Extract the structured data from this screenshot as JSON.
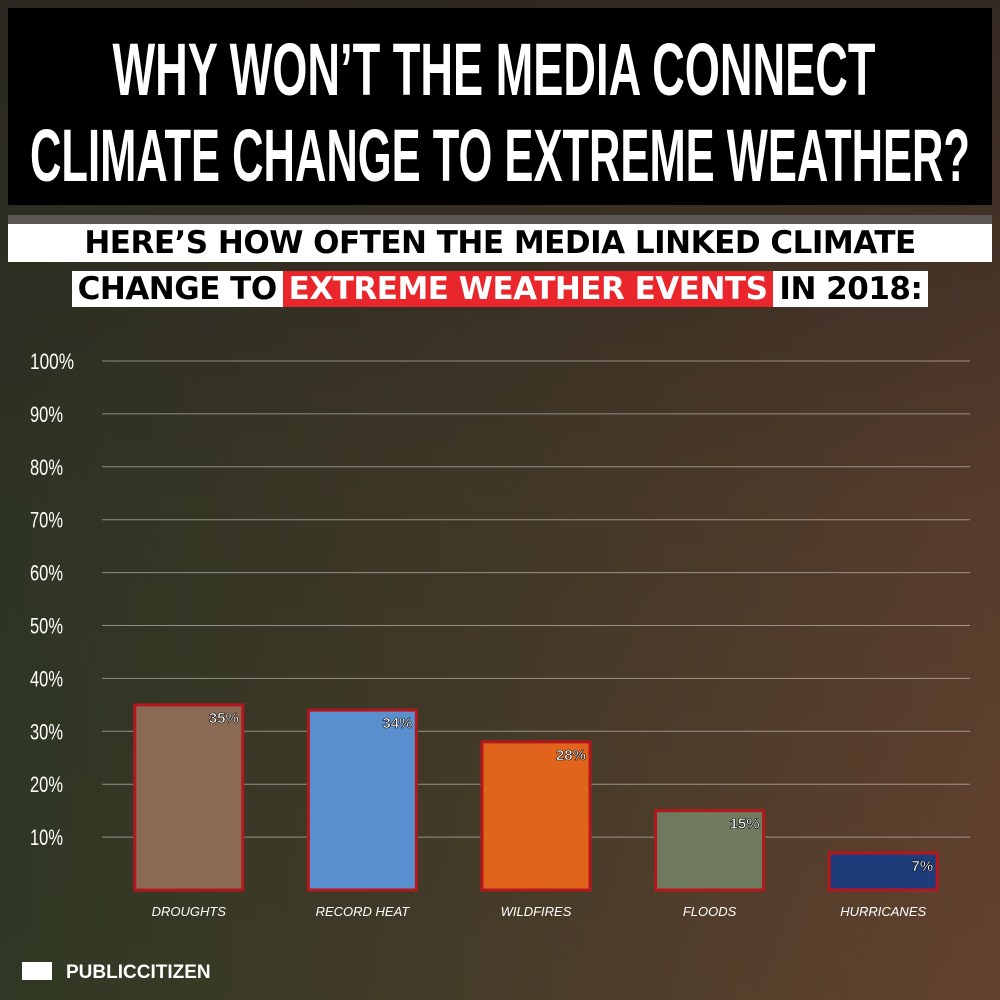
{
  "chart_data": {
    "type": "bar",
    "title": [
      "WHY WON’T THE MEDIA CONNECT",
      "CLIMATE CHANGE TO EXTREME WEATHER?"
    ],
    "subtitle": [
      "HERE’S HOW OFTEN THE MEDIA LINKED CLIMATE",
      "CHANGE TO",
      "EXTREME WEATHER EVENTS",
      "IN 2018:"
    ],
    "categories": [
      "DROUGHTS",
      "RECORD HEAT",
      "WILDFIRES",
      "FLOODS",
      "HURRICANES"
    ],
    "values": [
      35,
      34,
      28,
      15,
      7
    ],
    "value_labels": [
      "35%",
      "34%",
      "28%",
      "15%",
      "7%"
    ],
    "colors": [
      "#8a6a52",
      "#5a8fcf",
      "#e0641c",
      "#6f7a5f",
      "#1f3c7a"
    ],
    "border_color": "#b5171d",
    "ylim": [
      0,
      100
    ],
    "yticks": [
      {
        "value": 10,
        "label": "10%"
      },
      {
        "value": 20,
        "label": "20%"
      },
      {
        "value": 30,
        "label": "30%"
      },
      {
        "value": 40,
        "label": "40%"
      },
      {
        "value": 50,
        "label": "50%"
      },
      {
        "value": 60,
        "label": "60%"
      },
      {
        "value": 70,
        "label": "70%"
      },
      {
        "value": 80,
        "label": "80%"
      },
      {
        "value": 90,
        "label": "90%"
      },
      {
        "value": 100,
        "label": "100%"
      }
    ],
    "grid": true,
    "brand": "PUBLICCITIZEN"
  }
}
